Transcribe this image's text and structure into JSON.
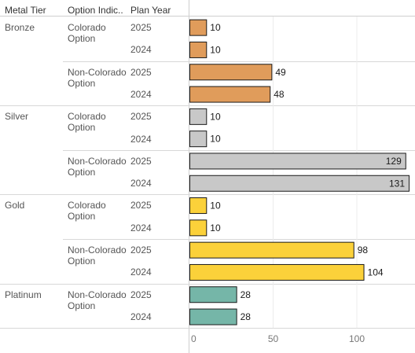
{
  "headers": {
    "metal_tier": "Metal Tier",
    "option_indicator": "Option Indic..",
    "plan_year": "Plan Year"
  },
  "colors": {
    "Bronze": "#e09c5b",
    "Silver": "#c8c8c8",
    "Gold": "#fbd13a",
    "Platinum": "#75b6a8"
  },
  "chart_data": {
    "type": "bar",
    "orientation": "horizontal",
    "xlim": [
      0,
      135
    ],
    "x_ticks": [
      0,
      50,
      100
    ],
    "grid": true,
    "groups": [
      {
        "tier": "Bronze",
        "options": [
          {
            "option": [
              "Colorado",
              "Option"
            ],
            "rows": [
              {
                "year": "2025",
                "value": 10
              },
              {
                "year": "2024",
                "value": 10
              }
            ]
          },
          {
            "option": [
              "Non-Colorado",
              "Option"
            ],
            "rows": [
              {
                "year": "2025",
                "value": 49
              },
              {
                "year": "2024",
                "value": 48
              }
            ]
          }
        ]
      },
      {
        "tier": "Silver",
        "options": [
          {
            "option": [
              "Colorado",
              "Option"
            ],
            "rows": [
              {
                "year": "2025",
                "value": 10
              },
              {
                "year": "2024",
                "value": 10
              }
            ]
          },
          {
            "option": [
              "Non-Colorado",
              "Option"
            ],
            "rows": [
              {
                "year": "2025",
                "value": 129
              },
              {
                "year": "2024",
                "value": 131
              }
            ]
          }
        ]
      },
      {
        "tier": "Gold",
        "options": [
          {
            "option": [
              "Colorado",
              "Option"
            ],
            "rows": [
              {
                "year": "2025",
                "value": 10
              },
              {
                "year": "2024",
                "value": 10
              }
            ]
          },
          {
            "option": [
              "Non-Colorado",
              "Option"
            ],
            "rows": [
              {
                "year": "2025",
                "value": 98
              },
              {
                "year": "2024",
                "value": 104
              }
            ]
          }
        ]
      },
      {
        "tier": "Platinum",
        "options": [
          {
            "option": [
              "Non-Colorado",
              "Option"
            ],
            "rows": [
              {
                "year": "2025",
                "value": 28
              },
              {
                "year": "2024",
                "value": 28
              }
            ]
          }
        ]
      }
    ]
  }
}
